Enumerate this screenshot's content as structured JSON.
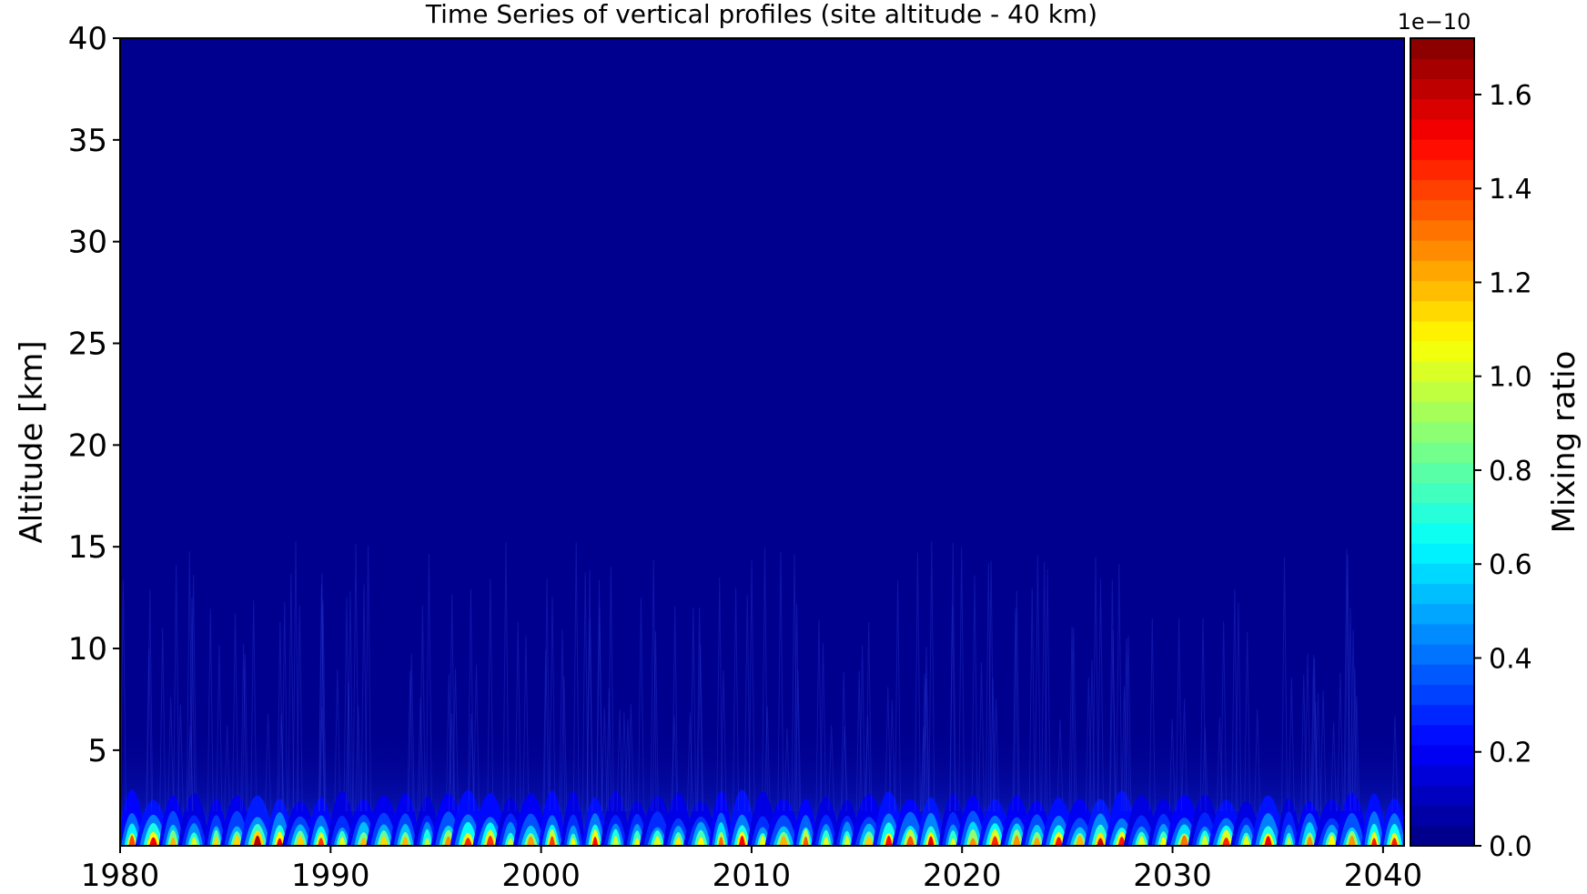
{
  "chart_data": {
    "type": "heatmap",
    "title": "Time Series of vertical profiles (site altitude - 40 km)",
    "xlabel": "",
    "ylabel": "Altitude [km]",
    "x_ticks": [
      "1980",
      "1990",
      "2000",
      "2010",
      "2020",
      "2030",
      "2040"
    ],
    "y_ticks": [
      "5",
      "10",
      "15",
      "20",
      "25",
      "30",
      "35",
      "40"
    ],
    "xlim": [
      1980,
      2041
    ],
    "ylim": [
      0.3,
      40
    ],
    "colorbar": {
      "label": "Mixing ratio",
      "offset_text": "1e−10",
      "ticks": [
        "0.0",
        "0.2",
        "0.4",
        "0.6",
        "0.8",
        "1.0",
        "1.2",
        "1.4",
        "1.6"
      ],
      "range": [
        0.0,
        1.72
      ],
      "colormap": "jet",
      "levels": 40
    },
    "pattern": {
      "description_values": {
        "seasonal_peaks_per_year": 1,
        "max_value_near_surface": 1.7,
        "typical_peak_near_surface": 1.0,
        "background_value": 0.02,
        "structure_top_altitude_km": 15.5
      }
    }
  }
}
